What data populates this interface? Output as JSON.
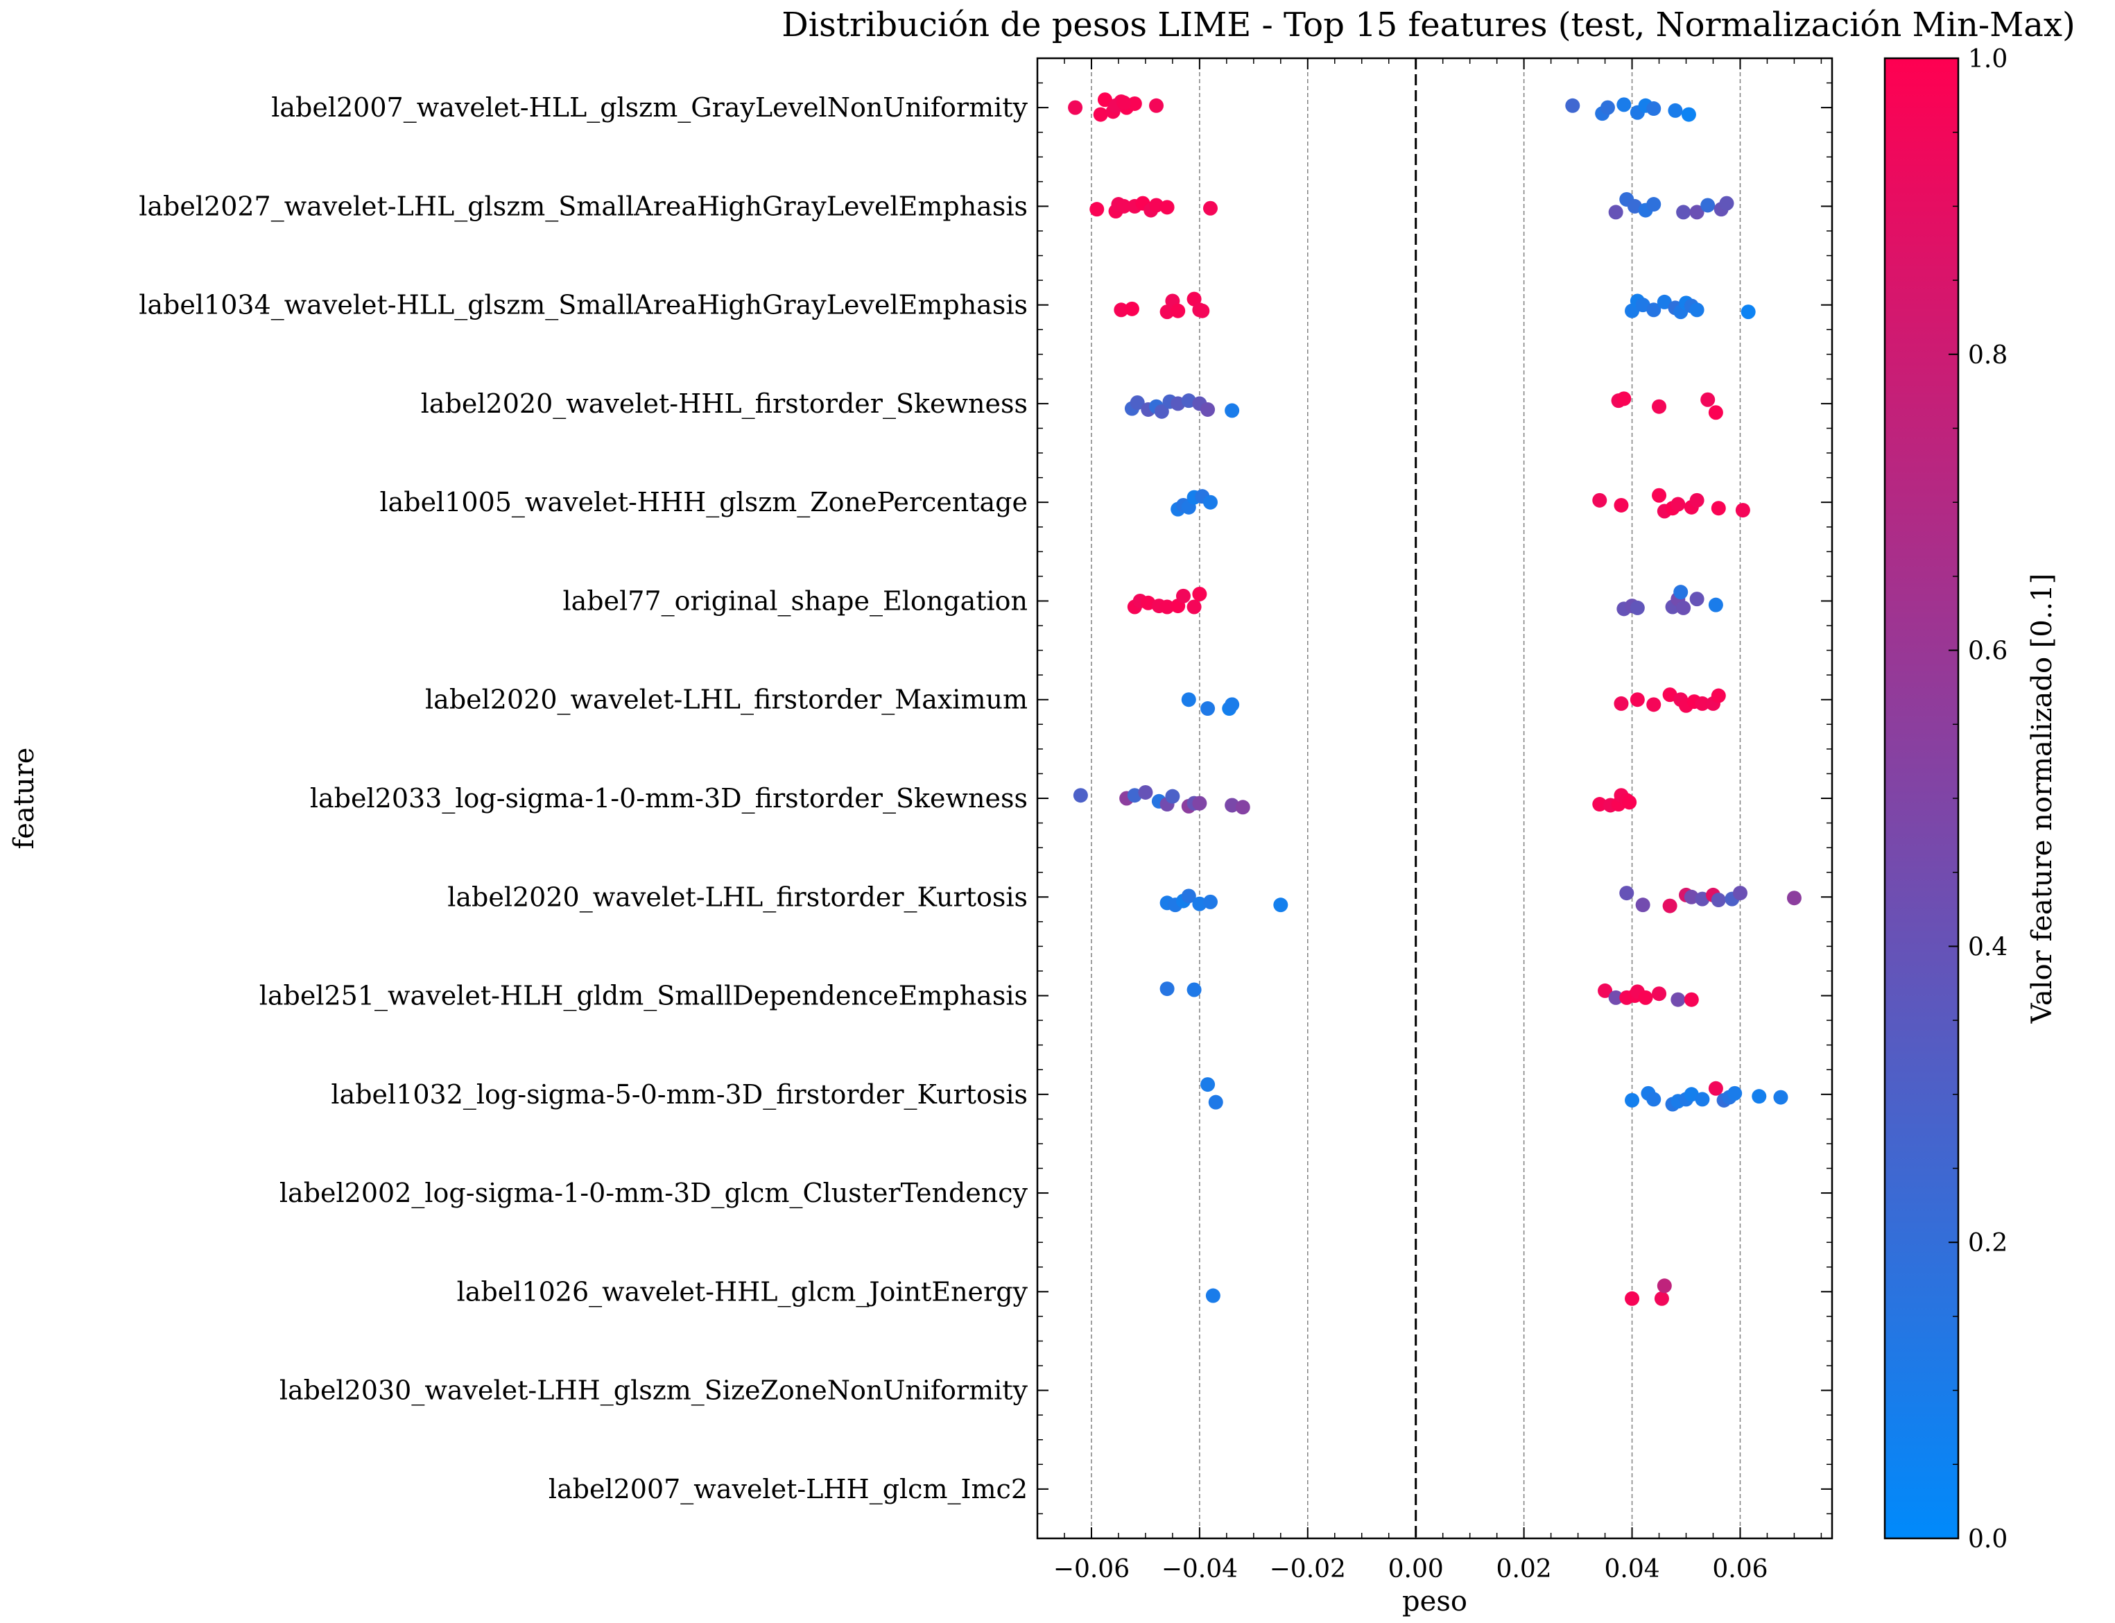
{
  "chart_data": {
    "type": "scatter",
    "title": "Distribución de pesos LIME - Top 15 features (test, Normalización Min-Max)",
    "xlabel": "peso",
    "ylabel": "feature",
    "xlim": [
      -0.07,
      0.077
    ],
    "x_ticks": [
      -0.06,
      -0.04,
      -0.02,
      0.0,
      0.02,
      0.04,
      0.06
    ],
    "x_tick_labels": [
      "−0.06",
      "−0.04",
      "−0.02",
      "0.00",
      "0.02",
      "0.04",
      "0.06"
    ],
    "grid_x": [
      -0.06,
      -0.04,
      -0.02,
      0.02,
      0.04,
      0.06
    ],
    "zero_line": 0.0,
    "colorbar": {
      "label": "Valor feature normalizado [0..1]",
      "min": 0.0,
      "max": 1.0,
      "ticks": [
        0.0,
        0.2,
        0.4,
        0.6,
        0.8,
        1.0
      ],
      "tick_labels": [
        "0.0",
        "0.2",
        "0.4",
        "0.6",
        "0.8",
        "1.0"
      ],
      "colormap_stops": [
        "#008afb",
        "#ff0051"
      ]
    },
    "features": [
      {
        "name": "label2007_wavelet-HLL_glszm_GrayLevelNonUniformity",
        "points": [
          [
            -0.063,
            0.95,
            0.0
          ],
          [
            -0.0583,
            0.98,
            0.07
          ],
          [
            -0.0575,
            1.0,
            -0.08
          ],
          [
            -0.056,
            0.97,
            0.04
          ],
          [
            -0.0545,
            0.96,
            -0.06
          ],
          [
            -0.0535,
            0.99,
            0.0
          ],
          [
            -0.052,
            0.98,
            -0.04
          ],
          [
            -0.048,
            0.96,
            -0.02
          ],
          [
            -0.0555,
            0.95,
            -0.02
          ],
          [
            -0.054,
            0.97,
            -0.05
          ],
          [
            0.029,
            0.25,
            -0.02
          ],
          [
            0.0345,
            0.15,
            0.06
          ],
          [
            0.0355,
            0.18,
            0.0
          ],
          [
            0.0385,
            0.1,
            -0.03
          ],
          [
            0.041,
            0.12,
            0.05
          ],
          [
            0.0425,
            0.08,
            -0.02
          ],
          [
            0.044,
            0.15,
            0.01
          ],
          [
            0.048,
            0.1,
            0.03
          ],
          [
            0.0505,
            0.05,
            0.07
          ]
        ]
      },
      {
        "name": "label2027_wavelet-LHL_glszm_SmallAreaHighGrayLevelEmphasis",
        "points": [
          [
            -0.059,
            0.98,
            0.03
          ],
          [
            -0.0555,
            0.97,
            0.05
          ],
          [
            -0.055,
            0.95,
            -0.02
          ],
          [
            -0.052,
            0.96,
            0.0
          ],
          [
            -0.0505,
            0.99,
            -0.03
          ],
          [
            -0.049,
            0.95,
            0.04
          ],
          [
            -0.048,
            0.97,
            -0.01
          ],
          [
            -0.046,
            0.98,
            0.01
          ],
          [
            -0.038,
            0.96,
            0.02
          ],
          [
            -0.054,
            0.96,
            0.0
          ],
          [
            0.037,
            0.4,
            0.06
          ],
          [
            0.039,
            0.2,
            -0.07
          ],
          [
            0.0405,
            0.22,
            0.0
          ],
          [
            0.0425,
            0.15,
            0.04
          ],
          [
            0.044,
            0.18,
            -0.02
          ],
          [
            0.0495,
            0.38,
            0.06
          ],
          [
            0.052,
            0.42,
            0.06
          ],
          [
            0.054,
            0.2,
            -0.01
          ],
          [
            0.0565,
            0.4,
            0.03
          ],
          [
            0.0575,
            0.38,
            -0.03
          ]
        ]
      },
      {
        "name": "label1034_wavelet-HLL_glszm_SmallAreaHighGrayLevelEmphasis",
        "points": [
          [
            -0.0545,
            0.97,
            0.05
          ],
          [
            -0.0525,
            0.99,
            0.04
          ],
          [
            -0.046,
            0.96,
            0.07
          ],
          [
            -0.045,
            0.95,
            -0.04
          ],
          [
            -0.044,
            0.98,
            0.06
          ],
          [
            -0.041,
            0.97,
            -0.06
          ],
          [
            -0.04,
            0.95,
            0.05
          ],
          [
            -0.0395,
            0.96,
            0.06
          ],
          [
            0.04,
            0.1,
            0.06
          ],
          [
            0.041,
            0.08,
            -0.04
          ],
          [
            0.042,
            0.12,
            0.0
          ],
          [
            0.044,
            0.15,
            0.05
          ],
          [
            0.046,
            0.1,
            -0.03
          ],
          [
            0.048,
            0.18,
            0.03
          ],
          [
            0.049,
            0.12,
            0.07
          ],
          [
            0.05,
            0.08,
            -0.02
          ],
          [
            0.051,
            0.15,
            0.01
          ],
          [
            0.052,
            0.1,
            0.05
          ],
          [
            0.0615,
            0.05,
            0.07
          ]
        ]
      },
      {
        "name": "label2020_wavelet-HHL_firstorder_Skewness",
        "points": [
          [
            -0.0525,
            0.25,
            0.05
          ],
          [
            -0.0515,
            0.3,
            -0.01
          ],
          [
            -0.0495,
            0.35,
            0.06
          ],
          [
            -0.048,
            0.2,
            0.03
          ],
          [
            -0.047,
            0.32,
            0.08
          ],
          [
            -0.0455,
            0.28,
            -0.02
          ],
          [
            -0.044,
            0.35,
            0.0
          ],
          [
            -0.042,
            0.3,
            -0.03
          ],
          [
            -0.04,
            0.38,
            0.0
          ],
          [
            -0.0385,
            0.42,
            0.06
          ],
          [
            -0.034,
            0.1,
            0.07
          ],
          [
            0.0375,
            0.95,
            -0.03
          ],
          [
            0.0385,
            0.98,
            -0.05
          ],
          [
            0.045,
            0.96,
            0.03
          ],
          [
            0.054,
            0.95,
            -0.04
          ],
          [
            0.0555,
            0.99,
            0.09
          ]
        ]
      },
      {
        "name": "label1005_wavelet-HHH_glszm_ZonePercentage",
        "points": [
          [
            -0.044,
            0.1,
            0.07
          ],
          [
            -0.043,
            0.15,
            0.03
          ],
          [
            -0.042,
            0.12,
            0.05
          ],
          [
            -0.041,
            0.08,
            -0.05
          ],
          [
            -0.0395,
            0.15,
            -0.06
          ],
          [
            -0.038,
            0.1,
            0.0
          ],
          [
            0.034,
            0.95,
            -0.02
          ],
          [
            0.038,
            0.97,
            0.03
          ],
          [
            0.045,
            0.98,
            -0.07
          ],
          [
            0.046,
            0.95,
            0.09
          ],
          [
            0.0475,
            0.99,
            0.06
          ],
          [
            0.0485,
            0.96,
            0.02
          ],
          [
            0.051,
            0.97,
            0.05
          ],
          [
            0.052,
            0.95,
            -0.02
          ],
          [
            0.056,
            0.98,
            0.06
          ],
          [
            0.0605,
            0.96,
            0.08
          ]
        ]
      },
      {
        "name": "label77_original_shape_Elongation",
        "points": [
          [
            -0.052,
            0.97,
            0.06
          ],
          [
            -0.051,
            0.95,
            0.0
          ],
          [
            -0.0495,
            0.98,
            0.02
          ],
          [
            -0.0475,
            0.96,
            0.05
          ],
          [
            -0.046,
            0.97,
            0.06
          ],
          [
            -0.044,
            0.99,
            0.05
          ],
          [
            -0.043,
            0.95,
            -0.05
          ],
          [
            -0.041,
            0.96,
            0.06
          ],
          [
            -0.04,
            0.98,
            -0.07
          ],
          [
            0.0385,
            0.4,
            0.08
          ],
          [
            0.04,
            0.42,
            0.05
          ],
          [
            0.041,
            0.38,
            0.07
          ],
          [
            0.0475,
            0.4,
            0.06
          ],
          [
            0.0485,
            0.45,
            -0.02
          ],
          [
            0.049,
            0.15,
            -0.09
          ],
          [
            0.0495,
            0.42,
            0.07
          ],
          [
            0.052,
            0.4,
            -0.02
          ],
          [
            0.0555,
            0.1,
            0.04
          ]
        ]
      },
      {
        "name": "label2020_wavelet-LHL_firstorder_Maximum",
        "points": [
          [
            -0.042,
            0.1,
            0.0
          ],
          [
            -0.0385,
            0.12,
            0.09
          ],
          [
            -0.0345,
            0.08,
            0.09
          ],
          [
            -0.034,
            0.1,
            0.05
          ],
          [
            0.038,
            0.95,
            0.04
          ],
          [
            0.041,
            0.97,
            0.0
          ],
          [
            0.044,
            0.96,
            0.05
          ],
          [
            0.047,
            0.98,
            -0.05
          ],
          [
            0.049,
            0.95,
            0.0
          ],
          [
            0.05,
            0.97,
            0.06
          ],
          [
            0.0515,
            0.99,
            0.02
          ],
          [
            0.053,
            0.96,
            0.04
          ],
          [
            0.055,
            0.95,
            0.04
          ],
          [
            0.056,
            0.98,
            -0.04
          ]
        ]
      },
      {
        "name": "label2033_log-sigma-1-0-mm-3D_firstorder_Skewness",
        "points": [
          [
            -0.062,
            0.3,
            -0.03
          ],
          [
            -0.0535,
            0.55,
            0.0
          ],
          [
            -0.052,
            0.25,
            -0.03
          ],
          [
            -0.05,
            0.4,
            -0.06
          ],
          [
            -0.0475,
            0.15,
            0.03
          ],
          [
            -0.046,
            0.45,
            0.06
          ],
          [
            -0.045,
            0.3,
            -0.02
          ],
          [
            -0.042,
            0.55,
            0.08
          ],
          [
            -0.041,
            0.4,
            0.05
          ],
          [
            -0.04,
            0.5,
            0.05
          ],
          [
            -0.034,
            0.48,
            0.07
          ],
          [
            -0.032,
            0.52,
            0.09
          ],
          [
            0.034,
            0.97,
            0.06
          ],
          [
            0.036,
            0.95,
            0.07
          ],
          [
            0.0375,
            0.98,
            0.06
          ],
          [
            0.038,
            0.96,
            -0.03
          ],
          [
            0.039,
            0.97,
            0.02
          ],
          [
            0.0395,
            0.99,
            0.04
          ]
        ]
      },
      {
        "name": "label2020_wavelet-LHL_firstorder_Kurtosis",
        "points": [
          [
            -0.046,
            0.1,
            0.06
          ],
          [
            -0.0445,
            0.12,
            0.08
          ],
          [
            -0.043,
            0.08,
            0.04
          ],
          [
            -0.042,
            0.15,
            -0.01
          ],
          [
            -0.04,
            0.1,
            0.07
          ],
          [
            -0.038,
            0.12,
            0.05
          ],
          [
            -0.025,
            0.08,
            0.08
          ],
          [
            0.039,
            0.4,
            -0.04
          ],
          [
            0.042,
            0.45,
            0.08
          ],
          [
            0.047,
            0.9,
            0.09
          ],
          [
            0.05,
            0.85,
            -0.02
          ],
          [
            0.051,
            0.45,
            0.0
          ],
          [
            0.053,
            0.4,
            0.02
          ],
          [
            0.055,
            0.88,
            -0.02
          ],
          [
            0.056,
            0.38,
            0.03
          ],
          [
            0.0585,
            0.3,
            0.02
          ],
          [
            0.06,
            0.42,
            -0.04
          ],
          [
            0.07,
            0.55,
            0.01
          ]
        ]
      },
      {
        "name": "label251_wavelet-HLH_gldm_SmallDependenceEmphasis",
        "points": [
          [
            -0.046,
            0.15,
            -0.07
          ],
          [
            -0.041,
            0.12,
            -0.06
          ],
          [
            0.035,
            0.95,
            -0.05
          ],
          [
            0.037,
            0.45,
            0.02
          ],
          [
            0.039,
            0.97,
            0.02
          ],
          [
            0.0405,
            0.98,
            0.0
          ],
          [
            0.041,
            0.96,
            -0.04
          ],
          [
            0.0425,
            0.98,
            0.02
          ],
          [
            0.045,
            0.95,
            -0.02
          ],
          [
            0.0485,
            0.45,
            0.04
          ],
          [
            0.051,
            0.97,
            0.04
          ]
        ]
      },
      {
        "name": "label1032_log-sigma-5-0-mm-3D_firstorder_Kurtosis",
        "points": [
          [
            -0.0385,
            0.1,
            -0.1
          ],
          [
            -0.037,
            0.12,
            0.08
          ],
          [
            0.04,
            0.08,
            0.06
          ],
          [
            0.043,
            0.1,
            -0.01
          ],
          [
            0.044,
            0.12,
            0.05
          ],
          [
            0.0475,
            0.15,
            0.1
          ],
          [
            0.0485,
            0.1,
            0.07
          ],
          [
            0.05,
            0.12,
            0.05
          ],
          [
            0.051,
            0.08,
            0.0
          ],
          [
            0.053,
            0.1,
            0.05
          ],
          [
            0.0555,
            0.95,
            -0.06
          ],
          [
            0.057,
            0.2,
            0.06
          ],
          [
            0.058,
            0.15,
            0.03
          ],
          [
            0.059,
            0.1,
            -0.01
          ],
          [
            0.0635,
            0.08,
            0.02
          ],
          [
            0.0675,
            0.1,
            0.03
          ]
        ]
      },
      {
        "name": "label2002_log-sigma-1-0-mm-3D_glcm_ClusterTendency",
        "points": []
      },
      {
        "name": "label1026_wavelet-HHL_glcm_JointEnergy",
        "points": [
          [
            -0.0375,
            0.1,
            0.04
          ],
          [
            0.04,
            0.97,
            0.07
          ],
          [
            0.0455,
            0.95,
            0.07
          ],
          [
            0.046,
            0.75,
            -0.06
          ]
        ]
      },
      {
        "name": "label2030_wavelet-LHH_glszm_SizeZoneNonUniformity",
        "points": []
      },
      {
        "name": "label2007_wavelet-LHH_glcm_Imc2",
        "points": []
      }
    ]
  }
}
